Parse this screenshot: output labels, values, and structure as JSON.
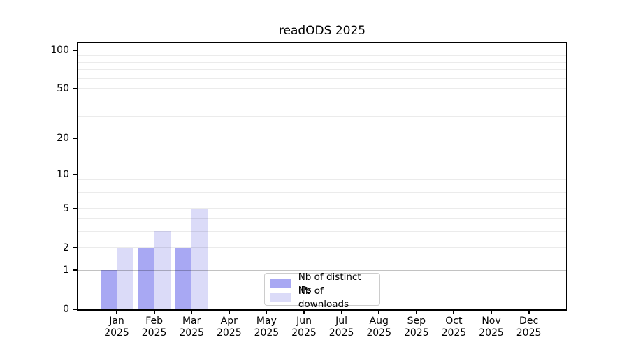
{
  "title": "readODS 2025",
  "legend": {
    "items": [
      {
        "label": "Nb of distinct IPs",
        "color": "#a8a8f3"
      },
      {
        "label": "Nb of downloads",
        "color": "#dbdbf8"
      }
    ]
  },
  "colors": {
    "bar_distinct_ips": "#a8a8f3",
    "bar_downloads": "#dbdbf8",
    "axis": "#000000",
    "legend_border": "#cccccc"
  },
  "chart_data": {
    "type": "bar",
    "title": "readODS 2025",
    "categories": [
      "Jan 2025",
      "Feb 2025",
      "Mar 2025",
      "Apr 2025",
      "May 2025",
      "Jun 2025",
      "Jul 2025",
      "Aug 2025",
      "Sep 2025",
      "Oct 2025",
      "Nov 2025",
      "Dec 2025"
    ],
    "series": [
      {
        "name": "Nb of distinct IPs",
        "color": "#a8a8f3",
        "values": [
          1,
          2,
          2,
          0,
          0,
          0,
          0,
          0,
          0,
          0,
          0,
          0
        ]
      },
      {
        "name": "Nb of downloads",
        "color": "#dbdbf8",
        "values": [
          2,
          3,
          5,
          0,
          0,
          0,
          0,
          0,
          0,
          0,
          0,
          0
        ]
      }
    ],
    "xlabel": "",
    "ylabel": "",
    "yscale": "log1p",
    "ylim": [
      0,
      113
    ],
    "yticks": [
      0,
      1,
      2,
      5,
      10,
      20,
      50,
      100
    ],
    "major_grid_values": [
      1,
      10,
      100
    ],
    "minor_grid_values": [
      2,
      3,
      4,
      5,
      6,
      7,
      8,
      9,
      20,
      30,
      40,
      50,
      60,
      70,
      80,
      90
    ],
    "grid": true,
    "legend_position": "lower center"
  }
}
